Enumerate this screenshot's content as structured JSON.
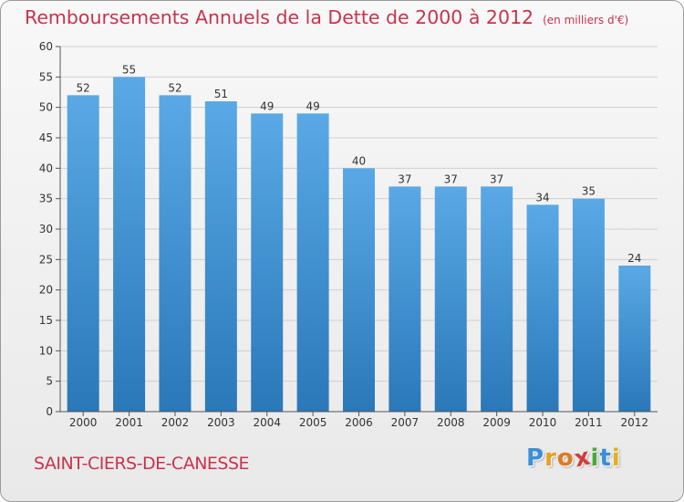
{
  "header": {
    "title": "Remboursements Annuels de la Dette de 2000 à 2012",
    "subtitle": "(en milliers d'€)"
  },
  "footer": {
    "town": "SAINT-CIERS-DE-CANESSE",
    "logo_letters": [
      "P",
      "r",
      "o",
      "x",
      "i",
      "t",
      "i"
    ],
    "logo_colors": [
      "#3a8fd6",
      "#e8a020",
      "#e07a20",
      "#d23c3c",
      "#4aa83a",
      "#3a8fd6",
      "#e0b020"
    ]
  },
  "chart_data": {
    "type": "bar",
    "title": "Remboursements Annuels de la Dette de 2000 à 2012",
    "subtitle": "(en milliers d'€)",
    "categories": [
      "2000",
      "2001",
      "2002",
      "2003",
      "2004",
      "2005",
      "2006",
      "2007",
      "2008",
      "2009",
      "2010",
      "2011",
      "2012"
    ],
    "values": [
      52,
      55,
      52,
      51,
      49,
      49,
      40,
      37,
      37,
      37,
      34,
      35,
      24
    ],
    "ylim": [
      0,
      60
    ],
    "yticks": [
      0,
      5,
      10,
      15,
      20,
      25,
      30,
      35,
      40,
      45,
      50,
      55,
      60
    ],
    "xlabel": "",
    "ylabel": "",
    "grid": true,
    "bar_color_top": "#5aa9e6",
    "bar_color_bottom": "#2a78b8",
    "grid_color": "#cfcfcf"
  }
}
